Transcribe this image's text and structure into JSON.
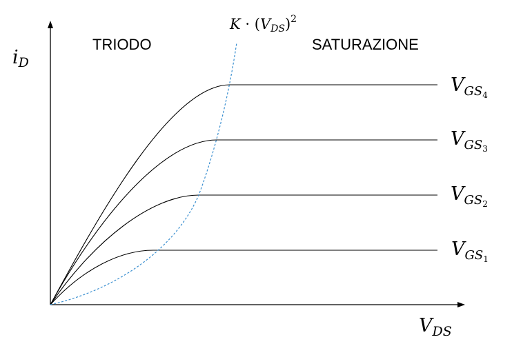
{
  "diagram": {
    "y_axis_label": {
      "main": "i",
      "sub": "D"
    },
    "x_axis_label": {
      "main": "V",
      "sub": "DS"
    },
    "region_left": "TRIODO",
    "region_right": "SATURAZIONE",
    "boundary_label": {
      "k": "K",
      "dot": "·",
      "open": "(",
      "v": "V",
      "sub": "DS",
      "close": ")",
      "exp": "2"
    },
    "curves": [
      {
        "main": "V",
        "sub": "GS",
        "subsub": "4"
      },
      {
        "main": "V",
        "sub": "GS",
        "subsub": "3"
      },
      {
        "main": "V",
        "sub": "GS",
        "subsub": "2"
      },
      {
        "main": "V",
        "sub": "GS",
        "subsub": "1"
      }
    ],
    "colors": {
      "curves": "#000000",
      "boundary": "#3a8fd0",
      "axes": "#000000"
    }
  }
}
